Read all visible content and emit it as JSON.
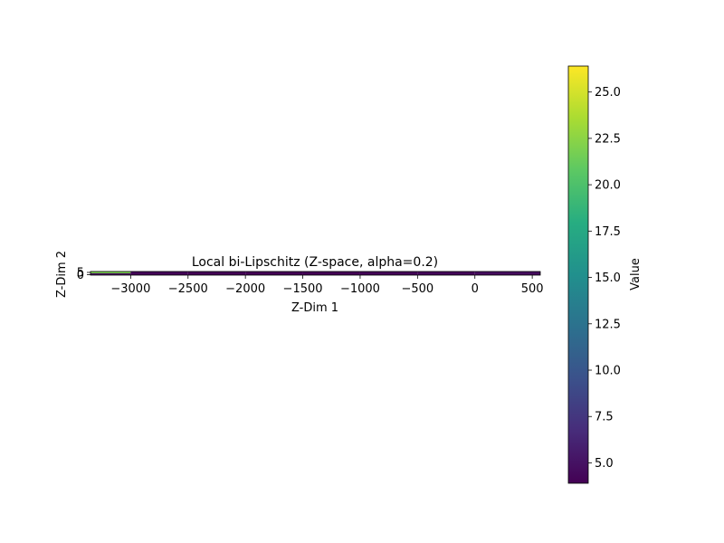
{
  "chart_data": {
    "type": "heatmap",
    "title": "Local bi-Lipschitz (Z-space, alpha=0.2)",
    "xlabel": "Z-Dim 1",
    "ylabel": "Z-Dim 2",
    "xlim": [
      -3350,
      570
    ],
    "ylim": [
      -1,
      7
    ],
    "x_ticks": [
      -3000,
      -2500,
      -2000,
      -1500,
      -1000,
      -500,
      0,
      500
    ],
    "x_tick_labels": [
      "−3000",
      "−2500",
      "−2000",
      "−1500",
      "−1000",
      "−500",
      "0",
      "500"
    ],
    "y_ticks": [
      0,
      5
    ],
    "y_tick_labels": [
      "0",
      "5"
    ],
    "x_edges": [
      -3350,
      -3000,
      -2500,
      -2000,
      -1500,
      -1000,
      -500,
      0,
      570
    ],
    "y_edges": [
      -1,
      3,
      7
    ],
    "values": [
      [
        4.2,
        4.1,
        4.0,
        4.0,
        4.0,
        4.1,
        4.2,
        4.5
      ],
      [
        21.8,
        4.3,
        4.2,
        4.1,
        4.1,
        4.2,
        4.4,
        4.8
      ]
    ],
    "colormap": "viridis",
    "colorbar": {
      "label": "Value",
      "vmin": 3.9,
      "vmax": 26.4,
      "ticks": [
        5.0,
        7.5,
        10.0,
        12.5,
        15.0,
        17.5,
        20.0,
        22.5,
        25.0
      ],
      "tick_labels": [
        "5.0",
        "7.5",
        "10.0",
        "12.5",
        "15.0",
        "17.5",
        "20.0",
        "22.5",
        "25.0"
      ]
    }
  }
}
